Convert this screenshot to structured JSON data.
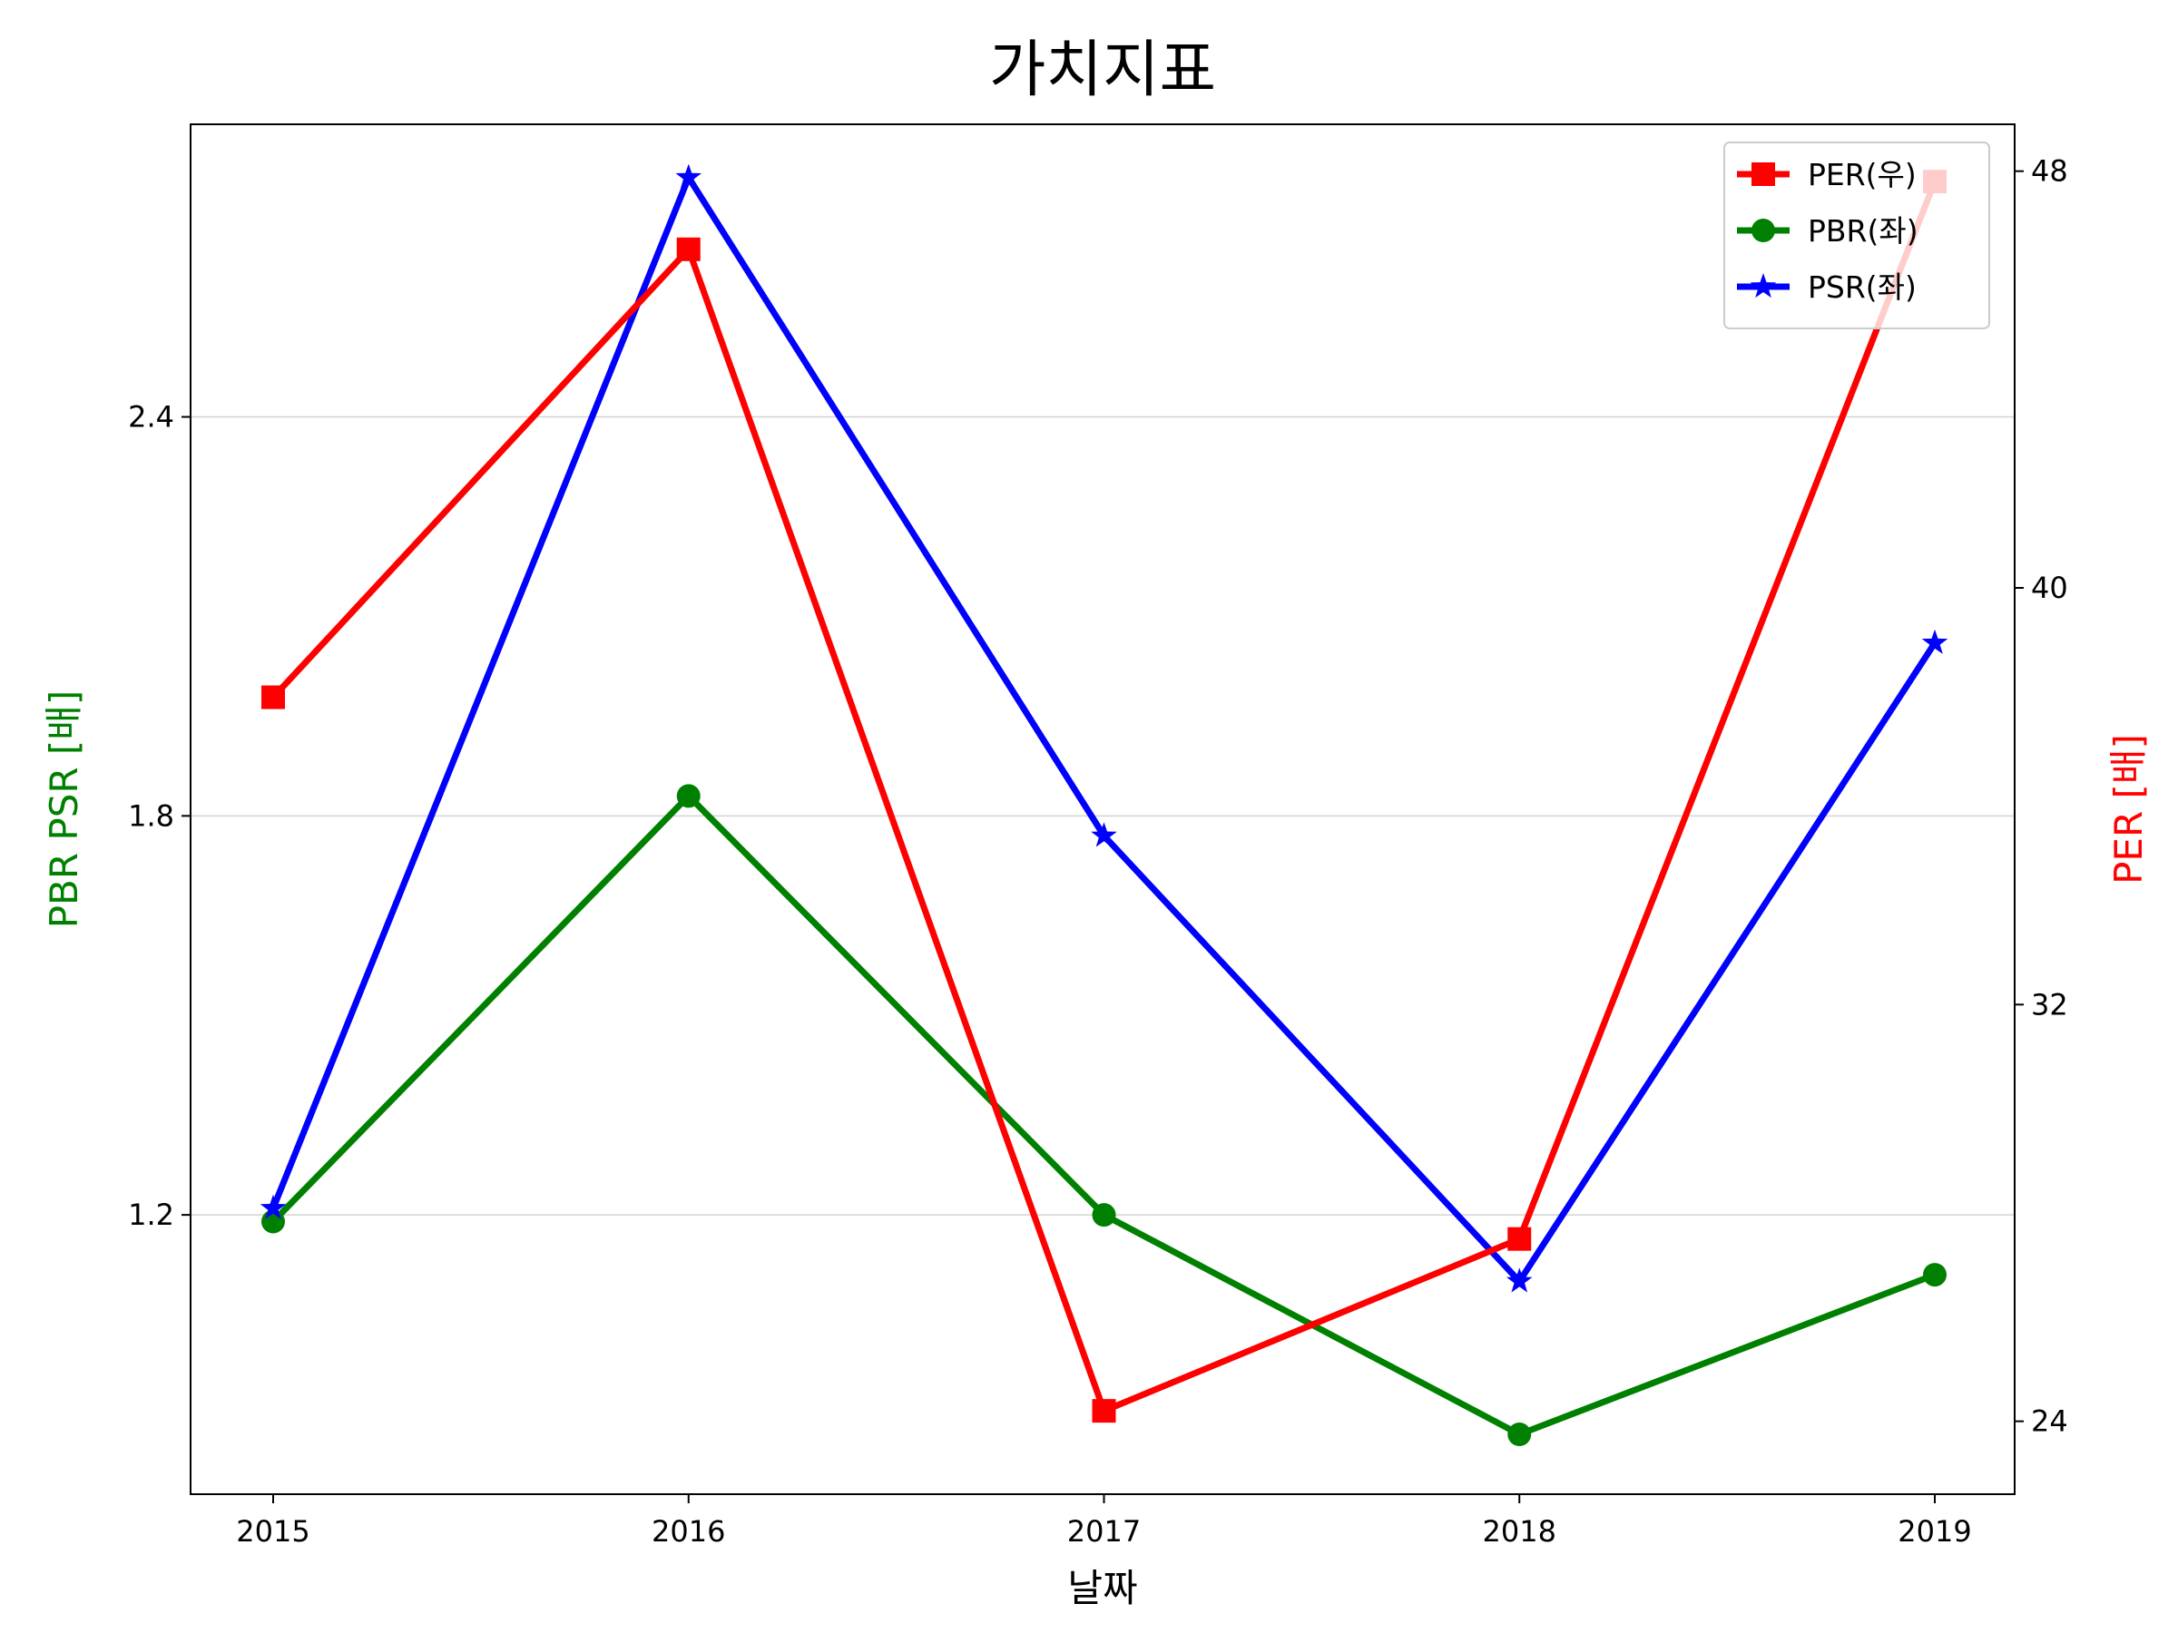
{
  "chart_data": {
    "type": "line",
    "title": "가치지표",
    "xlabel": "날짜",
    "ylabel_left": "PBR PSR [배]",
    "ylabel_right": "PER [배]",
    "categories": [
      "2015",
      "2016",
      "2017",
      "2018",
      "2019"
    ],
    "ylim_left": [
      0.78,
      2.84
    ],
    "ylim_right": [
      22.6,
      48.9
    ],
    "yticks_left": [
      "1.2",
      "1.8",
      "2.4"
    ],
    "yticks_right": [
      "24",
      "32",
      "40",
      "48"
    ],
    "grid": "horizontal, left axis",
    "legend_position": "top-right",
    "series": [
      {
        "name": "PER(우)",
        "axis": "right",
        "color": "#ff0000",
        "marker": "square",
        "values": [
          37.9,
          46.5,
          24.2,
          27.5,
          47.8
        ]
      },
      {
        "name": "PBR(좌)",
        "axis": "left",
        "color": "#008000",
        "marker": "circle",
        "values": [
          1.19,
          1.83,
          1.2,
          0.87,
          1.11
        ]
      },
      {
        "name": "PSR(좌)",
        "axis": "left",
        "color": "#0000ff",
        "marker": "star",
        "values": [
          1.21,
          2.76,
          1.77,
          1.1,
          2.06
        ]
      }
    ]
  }
}
